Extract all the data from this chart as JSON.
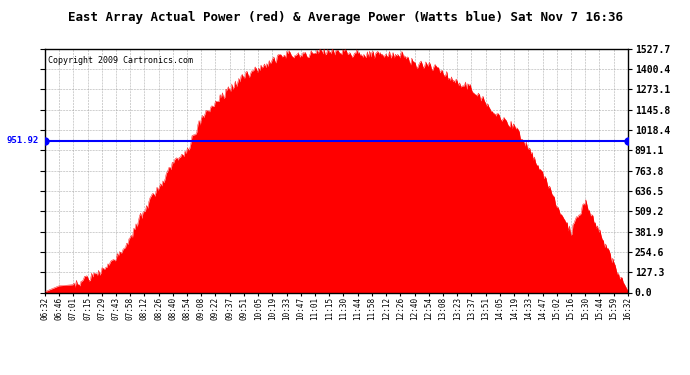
{
  "title": "East Array Actual Power (red) & Average Power (Watts blue) Sat Nov 7 16:36",
  "copyright": "Copyright 2009 Cartronics.com",
  "avg_power": 951.92,
  "y_max": 1527.7,
  "y_min": 0.0,
  "y_ticks": [
    0.0,
    127.3,
    254.6,
    381.9,
    509.2,
    636.5,
    763.8,
    891.1,
    1018.4,
    1145.8,
    1273.1,
    1400.4,
    1527.7
  ],
  "fill_color": "red",
  "line_color": "blue",
  "bg_color": "white",
  "grid_color": "#999999",
  "x_labels": [
    "06:32",
    "06:46",
    "07:01",
    "07:15",
    "07:29",
    "07:43",
    "07:58",
    "08:12",
    "08:26",
    "08:40",
    "08:54",
    "09:08",
    "09:22",
    "09:37",
    "09:51",
    "10:05",
    "10:19",
    "10:33",
    "10:47",
    "11:01",
    "11:15",
    "11:30",
    "11:44",
    "11:58",
    "12:12",
    "12:26",
    "12:40",
    "12:54",
    "13:08",
    "13:23",
    "13:37",
    "13:51",
    "14:05",
    "14:19",
    "14:33",
    "14:47",
    "15:02",
    "15:16",
    "15:30",
    "15:44",
    "15:59",
    "16:32"
  ],
  "power_curve": [
    5,
    15,
    35,
    80,
    150,
    240,
    360,
    500,
    650,
    790,
    920,
    1060,
    1180,
    1290,
    1370,
    1420,
    1460,
    1490,
    1500,
    1510,
    1515,
    1520,
    1510,
    1500,
    1490,
    1475,
    1450,
    1420,
    1380,
    1340,
    1280,
    1210,
    1120,
    1010,
    880,
    720,
    560,
    400,
    560,
    380,
    200,
    10
  ],
  "noise_seed": 42,
  "title_fontsize": 9,
  "copyright_fontsize": 6,
  "tick_fontsize": 7,
  "x_tick_fontsize": 5.5
}
